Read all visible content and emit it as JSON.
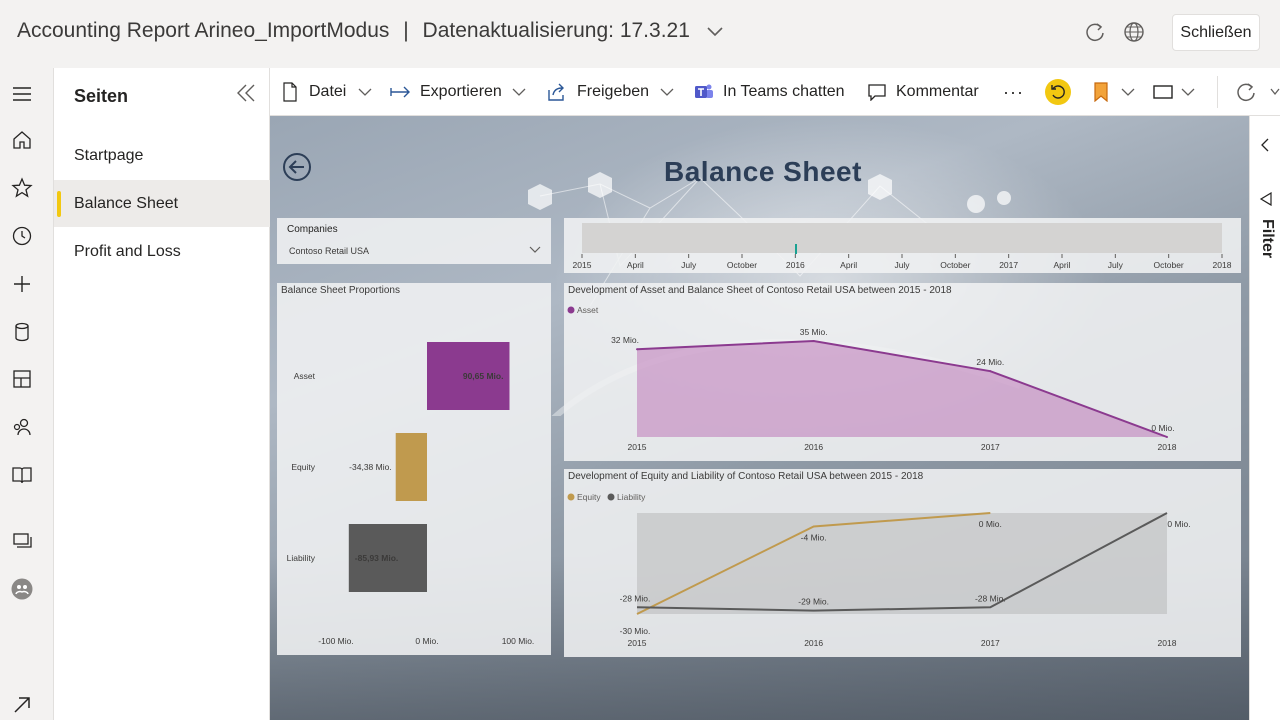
{
  "header": {
    "title": "Accounting Report Arineo_ImportModus",
    "separator": "|",
    "subtitle": "Datenaktualisierung: 17.3.21",
    "close_label": "Schließen"
  },
  "pages_pane": {
    "title": "Seiten",
    "items": [
      {
        "label": "Startpage"
      },
      {
        "label": "Balance Sheet"
      },
      {
        "label": "Profit and Loss"
      }
    ]
  },
  "toolbar": {
    "file": "Datei",
    "export": "Exportieren",
    "share": "Freigeben",
    "teams": "In Teams chatten",
    "comment": "Kommentar",
    "more": "···"
  },
  "report": {
    "title": "Balance Sheet",
    "slicer": {
      "label": "Companies",
      "value": "Contoso Retail USA"
    },
    "timeline": {
      "ticks": [
        "2015",
        "April",
        "July",
        "October",
        "2016",
        "April",
        "July",
        "October",
        "2017",
        "April",
        "July",
        "October",
        "2018"
      ]
    },
    "filter_label": "Filter"
  },
  "colors": {
    "asset": "#8b3a8f",
    "equity": "#c09a4e",
    "liability": "#5a5a5a",
    "accent": "#f2c811"
  },
  "chart_data": [
    {
      "type": "bar",
      "title": "Balance Sheet Proportions",
      "orientation": "horizontal",
      "categories": [
        "Asset",
        "Equity",
        "Liability"
      ],
      "values": [
        90.65,
        -34.38,
        -85.93
      ],
      "value_labels": [
        "90,65 Mio.",
        "-34,38 Mio.",
        "-85,93 Mio."
      ],
      "xlim": [
        -100,
        100
      ],
      "xticks": [
        "-100 Mio.",
        "0 Mio.",
        "100 Mio."
      ]
    },
    {
      "type": "area",
      "title": "Development of Asset and Balance Sheet of Contoso Retail USA between 2015 - 2018",
      "x": [
        "2015",
        "2016",
        "2017",
        "2018"
      ],
      "series": [
        {
          "name": "Asset",
          "values": [
            32,
            35,
            24,
            0
          ],
          "labels": [
            "32 Mio.",
            "35 Mio.",
            "24 Mio.",
            "0 Mio."
          ]
        }
      ],
      "legend": "top-left"
    },
    {
      "type": "line",
      "title": "Development of Equity and Liability of Contoso Retail USA between 2015 - 2018",
      "x": [
        "2015",
        "2016",
        "2017",
        "2018"
      ],
      "series": [
        {
          "name": "Equity",
          "values": [
            -30,
            -4,
            0,
            null
          ],
          "labels": [
            "-30 Mio.",
            "-4 Mio.",
            "0 Mio.",
            ""
          ]
        },
        {
          "name": "Liability",
          "values": [
            -28,
            -29,
            -28,
            0
          ],
          "labels": [
            "-28 Mio.",
            "-29 Mio.",
            "-28 Mio.",
            "0 Mio."
          ]
        }
      ],
      "legend": "top-left"
    }
  ]
}
